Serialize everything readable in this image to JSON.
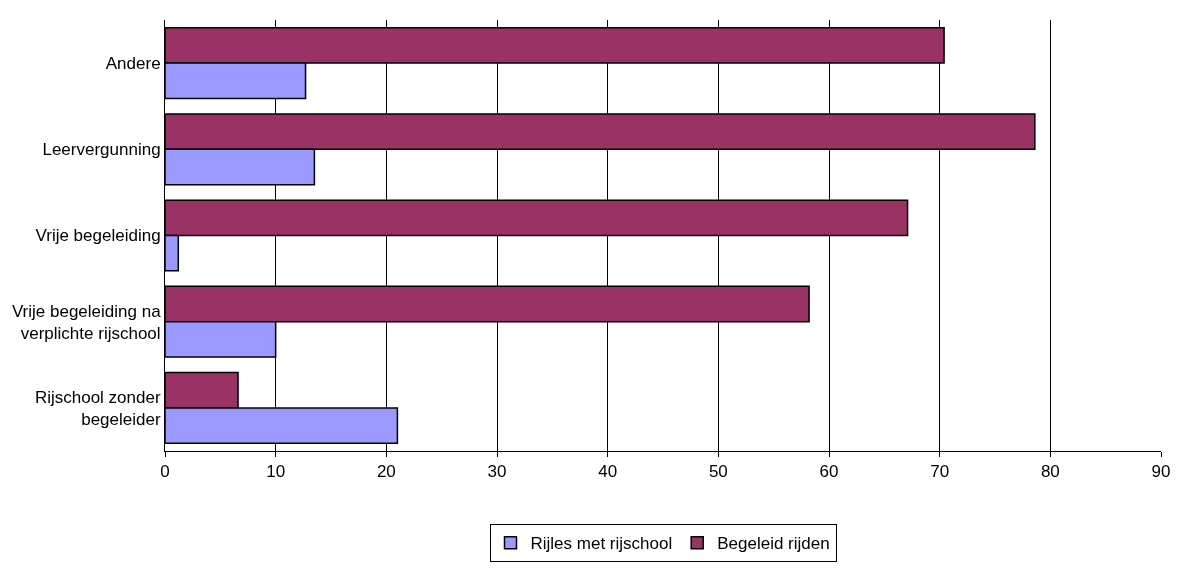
{
  "chart_data": {
    "type": "bar",
    "orientation": "horizontal",
    "categories": [
      "Andere",
      "Leervergunning",
      "Vrije begeleiding",
      "Vrije begeleiding na\nverplichte rijschool",
      "Rijschool zonder\nbegeleider"
    ],
    "series": [
      {
        "name": "Rijles met rijschool",
        "color": "#9999ff",
        "values": [
          12.7,
          13.5,
          1.2,
          10.0,
          21.0
        ]
      },
      {
        "name": "Begeleid rijden",
        "color": "#993366",
        "values": [
          70.4,
          78.6,
          67.1,
          58.2,
          6.6
        ]
      }
    ],
    "xlim": [
      0,
      90
    ],
    "xticks": [
      0,
      10,
      20,
      30,
      40,
      50,
      60,
      70,
      80,
      90
    ],
    "grid": "x",
    "legend": "bottom"
  }
}
